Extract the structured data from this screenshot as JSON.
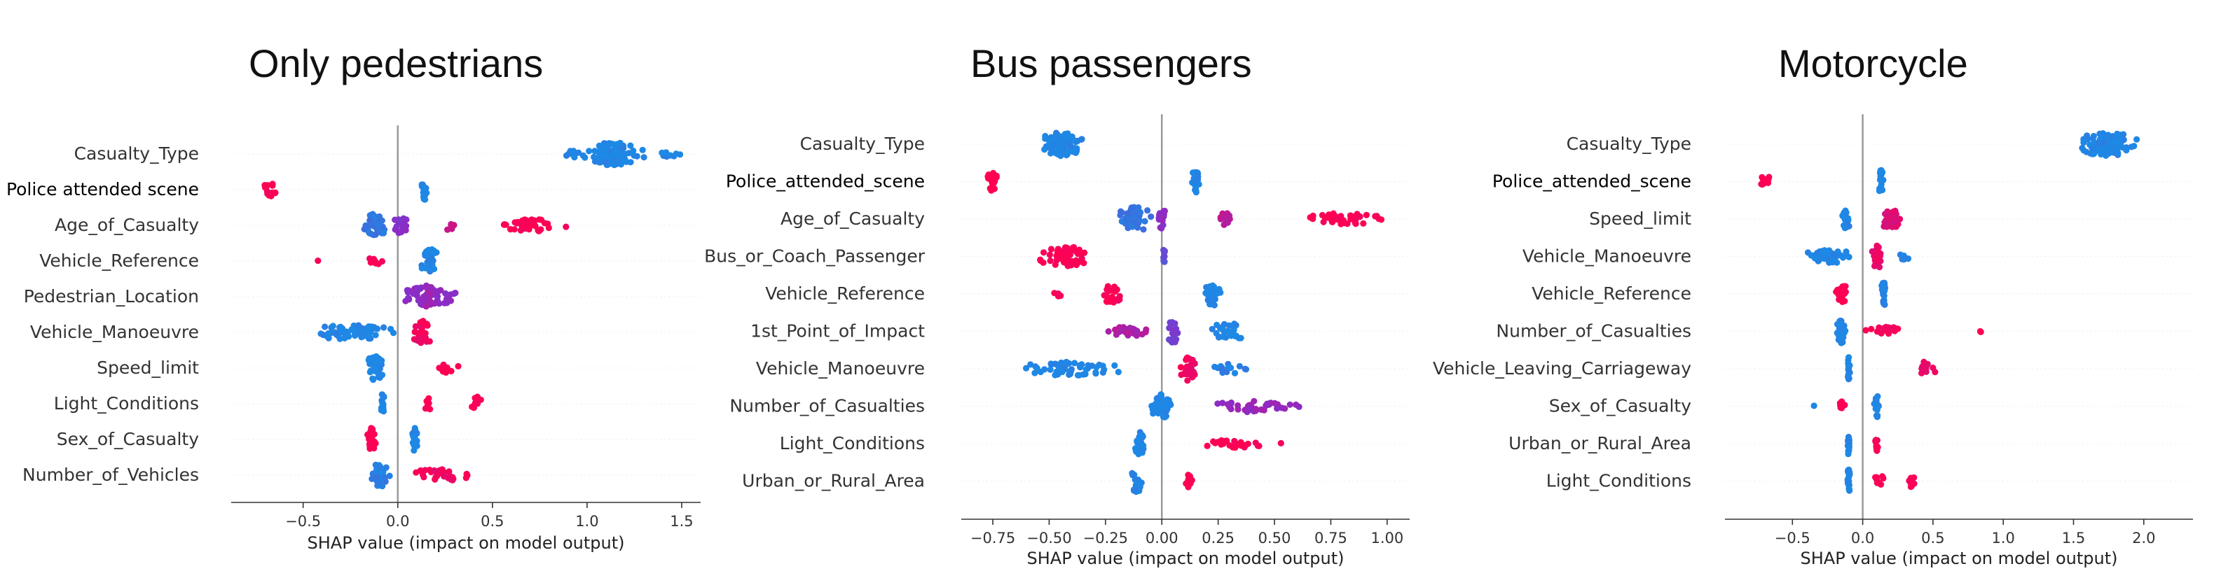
{
  "colors": {
    "low_value": "#1E88E5",
    "high_value": "#FF0052",
    "zero_line": "#999999",
    "row_grid": "#eeeeee",
    "axis": "#333333"
  },
  "chart_data": [
    {
      "type": "scatter",
      "subtype": "shap-beeswarm",
      "title": "Only pedestrians",
      "xlabel": "SHAP value (impact on model output)",
      "xlim": [
        -0.88,
        1.6
      ],
      "xticks": [
        -0.5,
        0.0,
        0.5,
        1.0,
        1.5
      ],
      "xtick_labels": [
        "−0.5",
        "0.0",
        "0.5",
        "1.0",
        "1.5"
      ],
      "features": [
        {
          "name": "Casualty_Type",
          "clusters": [
            {
              "center": 1.15,
              "spread": 0.18,
              "count": 90,
              "color": 0.0,
              "width": 1.0
            },
            {
              "center": 0.95,
              "spread": 0.07,
              "count": 10,
              "color": 0.0,
              "width": 0.5
            },
            {
              "center": 1.45,
              "spread": 0.08,
              "count": 8,
              "color": 0.0,
              "width": 0.3
            }
          ]
        },
        {
          "name": "Police attended scene",
          "clusters": [
            {
              "center": -0.67,
              "spread": 0.07,
              "count": 16,
              "color": 1.0,
              "width": 0.6
            },
            {
              "center": 0.14,
              "spread": 0.02,
              "count": 18,
              "color": 0.0,
              "width": 0.9
            }
          ]
        },
        {
          "name": "Age_of_Casualty",
          "clusters": [
            {
              "center": -0.12,
              "spread": 0.07,
              "count": 45,
              "color": 0.1,
              "width": 1.0
            },
            {
              "center": 0.02,
              "spread": 0.06,
              "count": 20,
              "color": 0.5,
              "width": 0.7
            },
            {
              "center": 0.28,
              "spread": 0.03,
              "count": 8,
              "color": 0.75,
              "width": 0.5
            },
            {
              "center": 0.72,
              "spread": 0.22,
              "count": 40,
              "color": 1.0,
              "width": 0.5
            }
          ]
        },
        {
          "name": "Vehicle_Reference",
          "clusters": [
            {
              "center": -0.42,
              "spread": 0.01,
              "count": 1,
              "color": 1.0,
              "width": 0.1
            },
            {
              "center": -0.12,
              "spread": 0.05,
              "count": 10,
              "color": 1.0,
              "width": 0.5
            },
            {
              "center": 0.17,
              "spread": 0.06,
              "count": 35,
              "color": 0.0,
              "width": 1.0
            }
          ]
        },
        {
          "name": "Pedestrian_Location",
          "clusters": [
            {
              "center": 0.16,
              "spread": 0.2,
              "count": 60,
              "color": 0.5,
              "width": 0.8
            },
            {
              "center": 0.16,
              "spread": 0.03,
              "count": 20,
              "color": 0.6,
              "width": 1.0
            }
          ]
        },
        {
          "name": "Vehicle_Manoeuvre",
          "clusters": [
            {
              "center": -0.25,
              "spread": 0.3,
              "count": 60,
              "color": 0.0,
              "width": 0.6
            },
            {
              "center": 0.13,
              "spread": 0.07,
              "count": 30,
              "color": 0.95,
              "width": 1.0
            }
          ]
        },
        {
          "name": "Speed_limit",
          "clusters": [
            {
              "center": -0.12,
              "spread": 0.06,
              "count": 35,
              "color": 0.0,
              "width": 1.0
            },
            {
              "center": 0.25,
              "spread": 0.17,
              "count": 14,
              "color": 1.0,
              "width": 0.4
            }
          ]
        },
        {
          "name": "Light_Conditions",
          "clusters": [
            {
              "center": -0.08,
              "spread": 0.01,
              "count": 18,
              "color": 0.0,
              "width": 1.0
            },
            {
              "center": 0.16,
              "spread": 0.03,
              "count": 8,
              "color": 1.0,
              "width": 0.6
            },
            {
              "center": 0.42,
              "spread": 0.04,
              "count": 12,
              "color": 1.0,
              "width": 0.6
            }
          ]
        },
        {
          "name": "Sex_of_Casualty",
          "clusters": [
            {
              "center": -0.14,
              "spread": 0.03,
              "count": 30,
              "color": 1.0,
              "width": 1.0
            },
            {
              "center": 0.09,
              "spread": 0.02,
              "count": 20,
              "color": 0.0,
              "width": 1.0
            }
          ]
        },
        {
          "name": "Number_of_Vehicles",
          "clusters": [
            {
              "center": -0.1,
              "spread": 0.06,
              "count": 40,
              "color": 0.05,
              "width": 1.0
            },
            {
              "center": 0.22,
              "spread": 0.2,
              "count": 30,
              "color": 0.95,
              "width": 0.5
            }
          ]
        }
      ]
    },
    {
      "type": "scatter",
      "subtype": "shap-beeswarm",
      "title": "Bus passengers",
      "xlabel": "SHAP value (impact on model output)",
      "xlim": [
        -0.89,
        1.1
      ],
      "xticks": [
        -0.75,
        -0.5,
        -0.25,
        0.0,
        0.25,
        0.5,
        0.75,
        1.0
      ],
      "xtick_labels": [
        "−0.75",
        "−0.50",
        "−0.25",
        "0.00",
        "0.25",
        "0.50",
        "0.75",
        "1.00"
      ],
      "features": [
        {
          "name": "Casualty_Type",
          "clusters": [
            {
              "center": -0.44,
              "spread": 0.12,
              "count": 80,
              "color": 0.0,
              "width": 1.0
            }
          ]
        },
        {
          "name": "Police_attended_scene",
          "clusters": [
            {
              "center": -0.75,
              "spread": 0.03,
              "count": 20,
              "color": 1.0,
              "width": 0.8
            },
            {
              "center": 0.15,
              "spread": 0.02,
              "count": 20,
              "color": 0.0,
              "width": 1.0
            }
          ]
        },
        {
          "name": "Age_of_Casualty",
          "clusters": [
            {
              "center": -0.12,
              "spread": 0.1,
              "count": 45,
              "color": 0.1,
              "width": 1.0
            },
            {
              "center": 0.0,
              "spread": 0.03,
              "count": 15,
              "color": 0.5,
              "width": 0.8
            },
            {
              "center": 0.28,
              "spread": 0.04,
              "count": 12,
              "color": 0.7,
              "width": 0.6
            },
            {
              "center": 0.8,
              "spread": 0.2,
              "count": 40,
              "color": 1.0,
              "width": 0.5
            }
          ]
        },
        {
          "name": "Bus_or_Coach_Passenger",
          "clusters": [
            {
              "center": -0.42,
              "spread": 0.15,
              "count": 50,
              "color": 1.0,
              "width": 0.8
            },
            {
              "center": 0.01,
              "spread": 0.005,
              "count": 8,
              "color": 0.3,
              "width": 0.7
            }
          ]
        },
        {
          "name": "Vehicle_Reference",
          "clusters": [
            {
              "center": -0.22,
              "spread": 0.06,
              "count": 25,
              "color": 1.0,
              "width": 0.8
            },
            {
              "center": -0.45,
              "spread": 0.08,
              "count": 5,
              "color": 1.0,
              "width": 0.2
            },
            {
              "center": 0.23,
              "spread": 0.05,
              "count": 35,
              "color": 0.0,
              "width": 1.0
            }
          ]
        },
        {
          "name": "1st_Point_of_Impact",
          "clusters": [
            {
              "center": -0.15,
              "spread": 0.12,
              "count": 30,
              "color": 0.65,
              "width": 0.4
            },
            {
              "center": 0.05,
              "spread": 0.03,
              "count": 20,
              "color": 0.4,
              "width": 1.0
            },
            {
              "center": 0.3,
              "spread": 0.12,
              "count": 30,
              "color": 0.0,
              "width": 0.7
            }
          ]
        },
        {
          "name": "Vehicle_Manoeuvre",
          "clusters": [
            {
              "center": -0.4,
              "spread": 0.25,
              "count": 60,
              "color": 0.0,
              "width": 0.6
            },
            {
              "center": 0.12,
              "spread": 0.05,
              "count": 30,
              "color": 0.95,
              "width": 1.0
            },
            {
              "center": 0.3,
              "spread": 0.12,
              "count": 15,
              "color": 0.05,
              "width": 0.4
            }
          ]
        },
        {
          "name": "Number_of_Casualties",
          "clusters": [
            {
              "center": 0.0,
              "spread": 0.06,
              "count": 35,
              "color": 0.0,
              "width": 1.0
            },
            {
              "center": 0.4,
              "spread": 0.25,
              "count": 40,
              "color": 0.55,
              "width": 0.5
            }
          ]
        },
        {
          "name": "Light_Conditions",
          "clusters": [
            {
              "center": -0.1,
              "spread": 0.03,
              "count": 30,
              "color": 0.0,
              "width": 1.0
            },
            {
              "center": 0.35,
              "spread": 0.2,
              "count": 25,
              "color": 1.0,
              "width": 0.4
            }
          ]
        },
        {
          "name": "Urban_or_Rural_Area",
          "clusters": [
            {
              "center": -0.11,
              "spread": 0.03,
              "count": 25,
              "color": 0.0,
              "width": 1.0
            },
            {
              "center": 0.12,
              "spread": 0.02,
              "count": 10,
              "color": 1.0,
              "width": 0.6
            }
          ]
        }
      ]
    },
    {
      "type": "scatter",
      "subtype": "shap-beeswarm",
      "title": "Motorcycle",
      "xlabel": "SHAP value (impact on model output)",
      "xlim": [
        -0.98,
        2.35
      ],
      "xticks": [
        -0.5,
        0.0,
        0.5,
        1.0,
        1.5,
        2.0
      ],
      "xtick_labels": [
        "−0.5",
        "0.0",
        "0.5",
        "1.0",
        "1.5",
        "2.0"
      ],
      "features": [
        {
          "name": "Casualty_Type",
          "clusters": [
            {
              "center": 1.75,
              "spread": 0.25,
              "count": 90,
              "color": 0.0,
              "width": 1.0
            }
          ]
        },
        {
          "name": "Police_attended_scene",
          "clusters": [
            {
              "center": -0.7,
              "spread": 0.06,
              "count": 12,
              "color": 1.0,
              "width": 0.5
            },
            {
              "center": 0.13,
              "spread": 0.02,
              "count": 18,
              "color": 0.0,
              "width": 1.0
            }
          ]
        },
        {
          "name": "Speed_limit",
          "clusters": [
            {
              "center": -0.12,
              "spread": 0.04,
              "count": 20,
              "color": 0.0,
              "width": 0.8
            },
            {
              "center": 0.2,
              "spread": 0.1,
              "count": 35,
              "color": 0.85,
              "width": 0.8
            }
          ]
        },
        {
          "name": "Vehicle_Manoeuvre",
          "clusters": [
            {
              "center": -0.25,
              "spread": 0.2,
              "count": 50,
              "color": 0.0,
              "width": 0.6
            },
            {
              "center": 0.1,
              "spread": 0.06,
              "count": 30,
              "color": 0.9,
              "width": 1.0
            },
            {
              "center": 0.3,
              "spread": 0.05,
              "count": 6,
              "color": 0.05,
              "width": 0.3
            }
          ]
        },
        {
          "name": "Vehicle_Reference",
          "clusters": [
            {
              "center": -0.15,
              "spread": 0.06,
              "count": 25,
              "color": 1.0,
              "width": 0.8
            },
            {
              "center": 0.15,
              "spread": 0.03,
              "count": 25,
              "color": 0.0,
              "width": 1.0
            }
          ]
        },
        {
          "name": "Number_of_Casualties",
          "clusters": [
            {
              "center": -0.15,
              "spread": 0.04,
              "count": 30,
              "color": 0.0,
              "width": 1.0
            },
            {
              "center": 0.15,
              "spread": 0.15,
              "count": 20,
              "color": 1.0,
              "width": 0.4
            },
            {
              "center": 0.84,
              "spread": 0.01,
              "count": 2,
              "color": 1.0,
              "width": 0.2
            }
          ]
        },
        {
          "name": "Vehicle_Leaving_Carriageway",
          "clusters": [
            {
              "center": -0.1,
              "spread": 0.01,
              "count": 15,
              "color": 0.0,
              "width": 1.0
            },
            {
              "center": 0.45,
              "spread": 0.08,
              "count": 14,
              "color": 0.9,
              "width": 0.6
            }
          ]
        },
        {
          "name": "Sex_of_Casualty",
          "clusters": [
            {
              "center": -0.15,
              "spread": 0.03,
              "count": 10,
              "color": 1.0,
              "width": 0.5
            },
            {
              "center": 0.1,
              "spread": 0.02,
              "count": 20,
              "color": 0.0,
              "width": 1.0
            },
            {
              "center": -0.35,
              "spread": 0.01,
              "count": 1,
              "color": 0.0,
              "width": 0.1
            }
          ]
        },
        {
          "name": "Urban_or_Rural_Area",
          "clusters": [
            {
              "center": -0.1,
              "spread": 0.01,
              "count": 18,
              "color": 0.0,
              "width": 1.0
            },
            {
              "center": 0.1,
              "spread": 0.02,
              "count": 12,
              "color": 1.0,
              "width": 0.7
            }
          ]
        },
        {
          "name": "Light_Conditions",
          "clusters": [
            {
              "center": -0.1,
              "spread": 0.01,
              "count": 18,
              "color": 0.0,
              "width": 1.0
            },
            {
              "center": 0.12,
              "spread": 0.04,
              "count": 8,
              "color": 1.0,
              "width": 0.5
            },
            {
              "center": 0.35,
              "spread": 0.04,
              "count": 10,
              "color": 1.0,
              "width": 0.5
            }
          ]
        }
      ]
    }
  ]
}
